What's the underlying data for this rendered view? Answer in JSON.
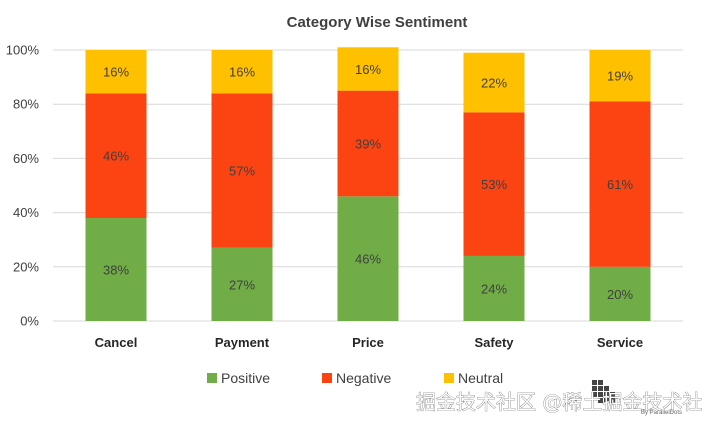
{
  "chart_data": {
    "type": "bar",
    "stacked": true,
    "title": "Category Wise Sentiment",
    "categories": [
      "Cancel",
      "Payment",
      "Price",
      "Safety",
      "Service"
    ],
    "series": [
      {
        "name": "Positive",
        "values": [
          38,
          27,
          46,
          24,
          20
        ],
        "labels": [
          "38%",
          "27%",
          "46%",
          "24%",
          "20%"
        ]
      },
      {
        "name": "Negative",
        "values": [
          46,
          57,
          39,
          53,
          61
        ],
        "labels": [
          "46%",
          "57%",
          "39%",
          "53%",
          "61%"
        ]
      },
      {
        "name": "Neutral",
        "values": [
          16,
          16,
          16,
          22,
          19
        ],
        "labels": [
          "16%",
          "16%",
          "16%",
          "22%",
          "19%"
        ]
      }
    ],
    "yticks": [
      "0%",
      "20%",
      "40%",
      "60%",
      "80%",
      "100%"
    ],
    "ylim": [
      0,
      100
    ],
    "grid": true,
    "legend_position": "bottom"
  },
  "colors": {
    "Positive": "#70ad47",
    "Negative": "#fc4312",
    "Neutral": "#ffc000",
    "grid": "#d9d9d9"
  },
  "watermark": {
    "text": "掘金技术社区 @稀土掘金技术社区",
    "small_text": "By ParallelDots"
  }
}
